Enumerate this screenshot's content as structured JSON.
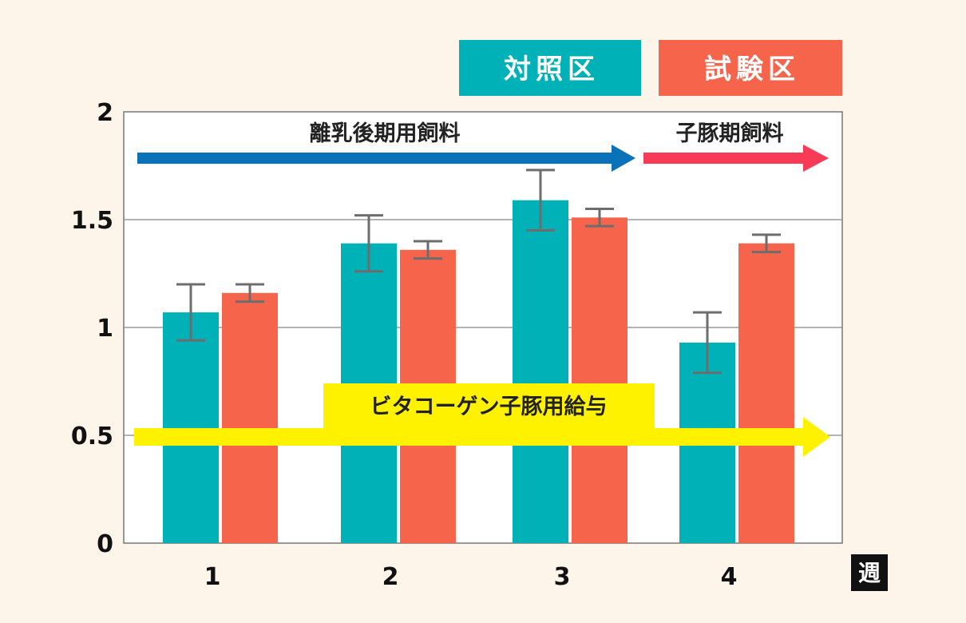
{
  "chart_data": {
    "type": "bar",
    "categories": [
      "1",
      "2",
      "3",
      "4"
    ],
    "x_unit": "週",
    "ylim": [
      0,
      2
    ],
    "yticks": [
      "0",
      "0.5",
      "1",
      "1.5",
      "2"
    ],
    "ytick_values": [
      0,
      0.5,
      1,
      1.5,
      2
    ],
    "grid": true,
    "legend_position": "top-right",
    "series": [
      {
        "name": "対照区",
        "color": "#00b2b8",
        "values": [
          1.07,
          1.39,
          1.59,
          0.93
        ],
        "error": [
          0.13,
          0.13,
          0.14,
          0.14
        ]
      },
      {
        "name": "試験区",
        "color": "#f5644b",
        "values": [
          1.16,
          1.36,
          1.51,
          1.39
        ],
        "error": [
          0.04,
          0.04,
          0.04,
          0.04
        ]
      }
    ],
    "annotations": [
      {
        "text": "離乳後期用飼料",
        "color": "#0a72b8",
        "from_category": "1",
        "to_category": "3"
      },
      {
        "text": "子豚期飼料",
        "color": "#f73a55",
        "from_category": "3",
        "to_category": "4"
      },
      {
        "text": "ビタコーゲン子豚用給与",
        "color": "#fff200",
        "from_category": "1",
        "to_category": "4"
      }
    ]
  }
}
